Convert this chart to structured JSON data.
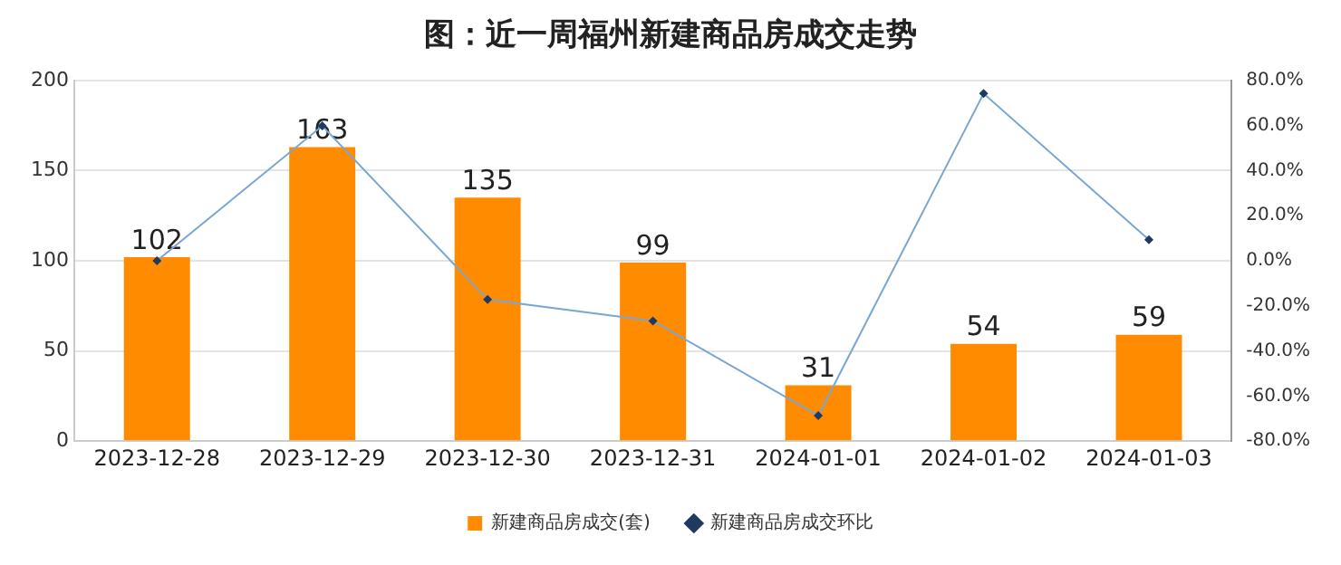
{
  "chart_data": {
    "type": "bar",
    "title": "图：近一周福州新建商品房成交走势",
    "categories": [
      "2023-12-28",
      "2023-12-29",
      "2023-12-30",
      "2023-12-31",
      "2024-01-01",
      "2024-01-02",
      "2024-01-03"
    ],
    "series": [
      {
        "name": "新建商品房成交(套)",
        "color": "#ff8c00",
        "values": [
          102,
          163,
          135,
          99,
          31,
          54,
          59
        ],
        "value_labels": [
          "102",
          "163",
          "135",
          "99",
          "31",
          "54",
          "59"
        ]
      },
      {
        "name": "新建商品房成交环比",
        "type": "line",
        "axis": "y2",
        "color": "#7aa6d2",
        "marker": "diamond",
        "values": [
          0,
          59.8,
          -17.2,
          -26.7,
          -68.7,
          74.2,
          9.3
        ]
      }
    ],
    "ylim": [
      0,
      200
    ],
    "yticks": [
      0,
      50,
      100,
      150,
      200
    ],
    "y2lim": [
      -80,
      80
    ],
    "y2ticks": [
      {
        "value": -80,
        "label": "-80.0%"
      },
      {
        "value": -60,
        "label": "-60.0%"
      },
      {
        "value": -40,
        "label": "-40.0%"
      },
      {
        "value": -20,
        "label": "-20.0%"
      },
      {
        "value": 0,
        "label": "0.0%"
      },
      {
        "value": 20,
        "label": "20.0%"
      },
      {
        "value": 40,
        "label": "40.0%"
      },
      {
        "value": 60,
        "label": "60.0%"
      },
      {
        "value": 80,
        "label": "80.0%"
      }
    ],
    "grid": "y",
    "legend": "bottom"
  }
}
